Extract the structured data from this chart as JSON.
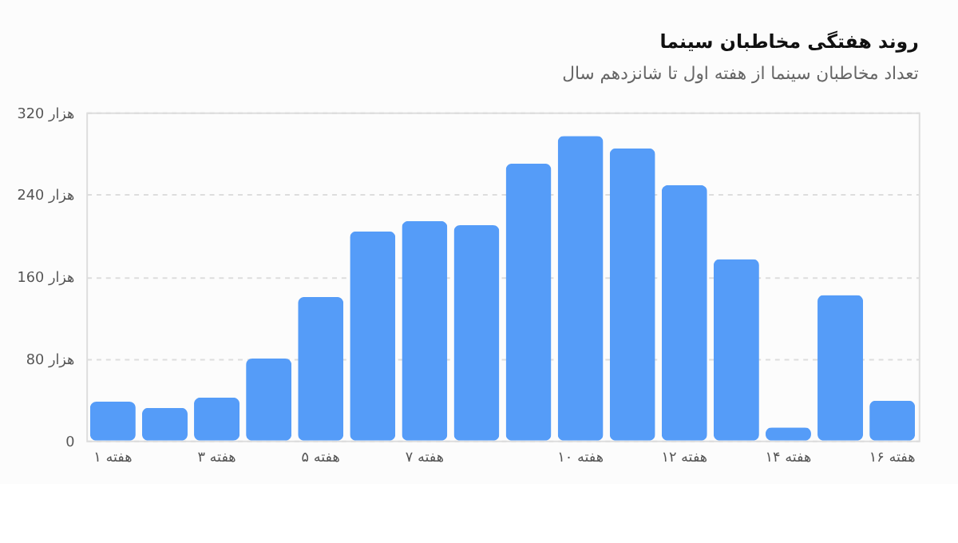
{
  "chart_data": {
    "type": "bar",
    "title": "روند هفتگی مخاطبان سینما",
    "subtitle": "تعداد مخاطبان سینما از هفته اول تا شانزدهم سال",
    "categories": [
      "هفته ۱",
      null,
      "هفته ۳",
      null,
      "هفته ۵",
      null,
      "هفته ۷",
      null,
      null,
      "هفته ۱۰",
      null,
      "هفته ۱۲",
      null,
      "هفته ۱۴",
      null,
      "هفته ۱۶"
    ],
    "values": [
      38,
      32,
      42,
      80,
      140,
      204,
      214,
      210,
      270,
      297,
      285,
      249,
      177,
      13,
      142,
      39
    ],
    "color": "#559cf8",
    "ylim": [
      0,
      320
    ],
    "yticks": [
      0,
      {
        "value": 80,
        "label": "80 هزار"
      },
      {
        "value": 160,
        "label": "160 هزار"
      },
      {
        "value": 240,
        "label": "240 هزار"
      },
      {
        "value": 320,
        "label": "320 هزار"
      }
    ],
    "grid": "y"
  }
}
